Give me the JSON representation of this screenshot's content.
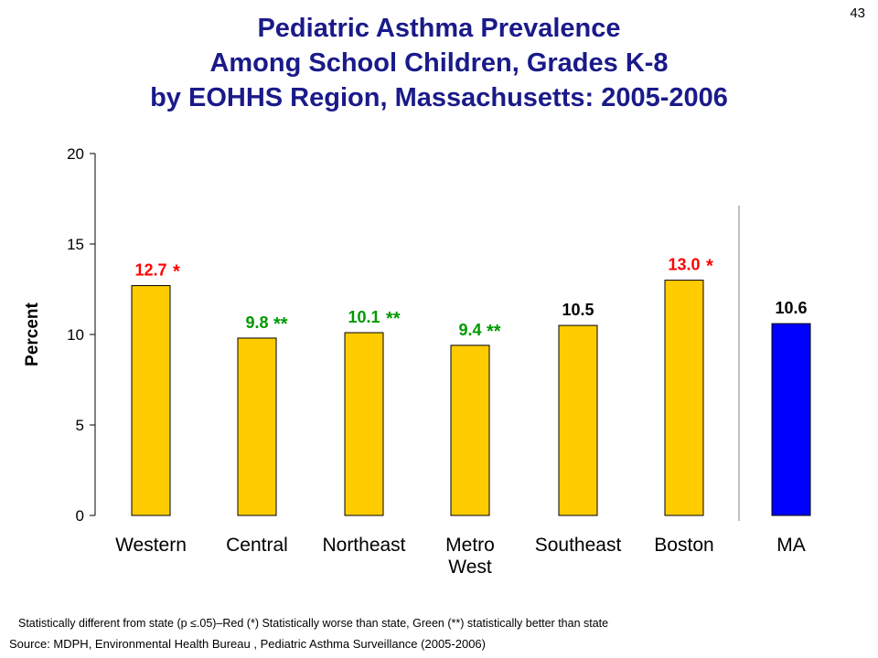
{
  "slide_number": "43",
  "title_lines": [
    "Pediatric Asthma Prevalence",
    "Among School Children, Grades K-8",
    "by EOHHS Region, Massachusetts: 2005-2006"
  ],
  "footnote": "Statistically different from state (p ≤.05)–Red (*) Statistically worse than state, Green (**) statistically better than state",
  "source": "Source:  MDPH, Environmental Health Bureau , Pediatric Asthma Surveillance (2005-2006)",
  "colors": {
    "title": "#1a1a8a",
    "region_bar": "#ffcc00",
    "state_bar": "#0000ff",
    "worse_label": "#ff0000",
    "better_label": "#009900",
    "neutral_label": "#000000"
  },
  "chart_data": {
    "type": "bar",
    "ylabel": "Percent",
    "ylim": [
      0,
      20
    ],
    "yticks": [
      0,
      5,
      10,
      15,
      20
    ],
    "grid": false,
    "categories": [
      "Western",
      "Central",
      "Northeast",
      "Metro\nWest",
      "Southeast",
      "Boston",
      "MA"
    ],
    "values": [
      12.7,
      9.8,
      10.1,
      9.4,
      10.5,
      13.0,
      10.6
    ],
    "labels": [
      "12.7",
      "9.8",
      "10.1",
      "9.4",
      "10.5",
      "13.0",
      "10.6"
    ],
    "markers": [
      "*",
      "**",
      "**",
      "**",
      "",
      "*",
      ""
    ],
    "significance": [
      "worse",
      "better",
      "better",
      "better",
      "none",
      "worse",
      "none"
    ]
  }
}
